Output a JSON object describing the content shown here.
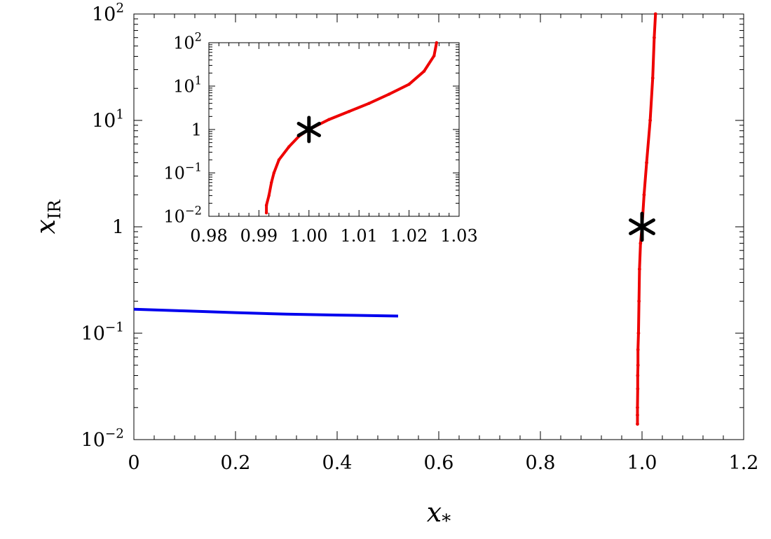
{
  "chart_data": [
    {
      "id": "main",
      "type": "scatter",
      "xlabel": "x",
      "xlabel_sub": "*",
      "ylabel": "x",
      "ylabel_sub": "IR",
      "xlim": [
        0,
        1.2
      ],
      "ylim": [
        0.01,
        100
      ],
      "yscale": "log",
      "x_ticks": [
        "0",
        "0.2",
        "0.4",
        "0.6",
        "0.8",
        "1.0",
        "1.2"
      ],
      "y_ticks": [
        {
          "value": 0.01,
          "base": "10",
          "exp": "−2"
        },
        {
          "value": 0.1,
          "base": "10",
          "exp": "−1"
        },
        {
          "value": 1,
          "base": "1",
          "exp": ""
        },
        {
          "value": 10,
          "base": "10",
          "exp": "1"
        },
        {
          "value": 100,
          "base": "10",
          "exp": "2"
        }
      ],
      "series": [
        {
          "color": "#0000ee",
          "style": "line",
          "points": [
            [
              0.0,
              0.168
            ],
            [
              0.1,
              0.162
            ],
            [
              0.2,
              0.156
            ],
            [
              0.3,
              0.151
            ],
            [
              0.4,
              0.148
            ],
            [
              0.52,
              0.145
            ]
          ]
        },
        {
          "color": "#ee0000",
          "style": "dots",
          "points": [
            [
              0.991,
              0.014
            ],
            [
              0.991,
              0.017
            ],
            [
              0.991,
              0.02
            ],
            [
              0.9915,
              0.03
            ],
            [
              0.9915,
              0.04
            ],
            [
              0.992,
              0.05
            ],
            [
              0.992,
              0.07
            ],
            [
              0.993,
              0.1
            ],
            [
              0.994,
              0.2
            ],
            [
              0.995,
              0.4
            ],
            [
              0.997,
              0.7
            ],
            [
              1.0,
              1.0
            ],
            [
              1.004,
              2.0
            ],
            [
              1.009,
              4.0
            ],
            [
              1.016,
              10.0
            ],
            [
              1.021,
              25.0
            ],
            [
              1.024,
              60.0
            ],
            [
              1.0265,
              100.0
            ]
          ]
        }
      ],
      "marker": {
        "x": 1.0,
        "y": 1.0,
        "symbol": "asterisk",
        "color": "#000000"
      }
    },
    {
      "id": "inset",
      "type": "scatter",
      "xlim": [
        0.98,
        1.03
      ],
      "ylim": [
        0.01,
        100
      ],
      "yscale": "log",
      "x_ticks": [
        "0.98",
        "0.99",
        "1.00",
        "1.01",
        "1.02",
        "1.03"
      ],
      "y_ticks": [
        {
          "value": 0.01,
          "base": "10",
          "exp": "−2"
        },
        {
          "value": 0.1,
          "base": "10",
          "exp": "−1"
        },
        {
          "value": 1,
          "base": "1",
          "exp": ""
        },
        {
          "value": 10,
          "base": "10",
          "exp": "1"
        },
        {
          "value": 100,
          "base": "10",
          "exp": "2"
        }
      ],
      "series": [
        {
          "color": "#ee0000",
          "style": "dots",
          "points": [
            [
              0.9915,
              0.012
            ],
            [
              0.9915,
              0.018
            ],
            [
              0.992,
              0.03
            ],
            [
              0.9925,
              0.06
            ],
            [
              0.993,
              0.1
            ],
            [
              0.994,
              0.2
            ],
            [
              0.996,
              0.4
            ],
            [
              0.998,
              0.7
            ],
            [
              1.0,
              1.0
            ],
            [
              1.004,
              1.7
            ],
            [
              1.008,
              2.6
            ],
            [
              1.012,
              4.0
            ],
            [
              1.016,
              6.5
            ],
            [
              1.02,
              11.0
            ],
            [
              1.023,
              22.0
            ],
            [
              1.025,
              50.0
            ],
            [
              1.0255,
              100.0
            ]
          ]
        }
      ],
      "marker": {
        "x": 1.0,
        "y": 1.0,
        "symbol": "asterisk",
        "color": "#000000"
      }
    }
  ]
}
